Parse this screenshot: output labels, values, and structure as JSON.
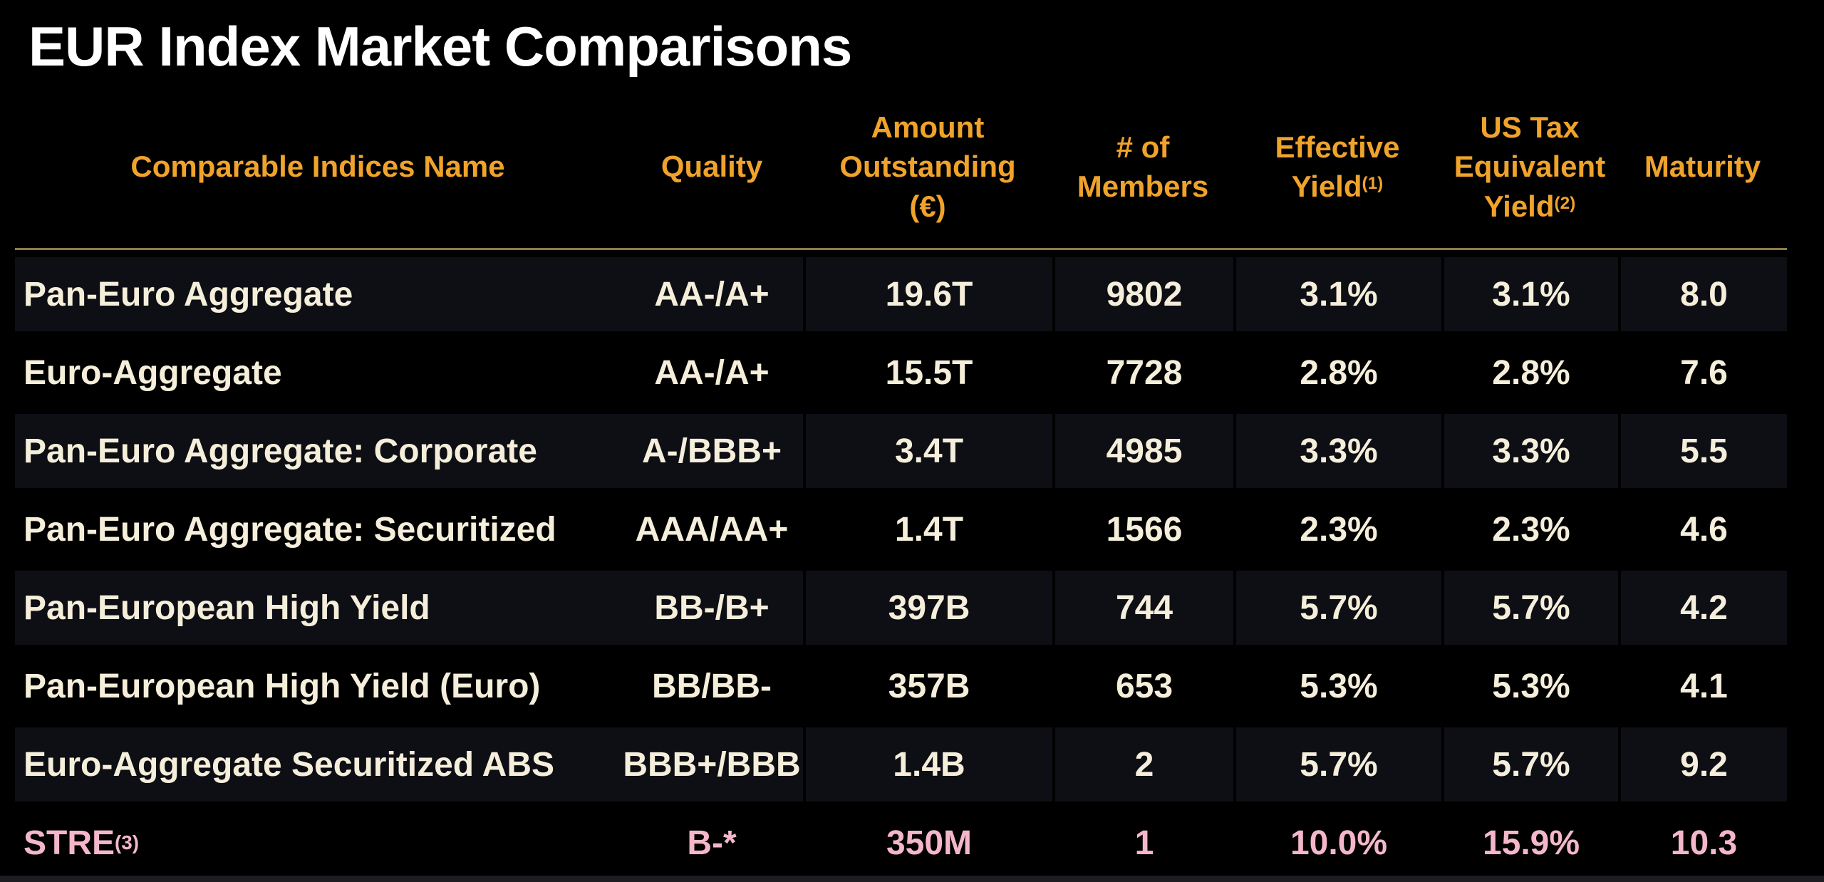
{
  "title": "EUR Index Market Comparisons",
  "colors": {
    "background": "#000000",
    "title_text": "#FFFFFF",
    "header_orange": "#F0A32B",
    "header_divider_gold": "#8D7B4A",
    "row_light_background": "#0E0E15",
    "row_dark_background": "#000000",
    "cell_text_cream": "#F5EEDA",
    "highlight_pink": "#F4B7CA"
  },
  "table": {
    "columns": [
      {
        "id": "name",
        "lines": [
          "Comparable Indices Name"
        ],
        "sup": ""
      },
      {
        "id": "quality",
        "lines": [
          "Quality"
        ],
        "sup": ""
      },
      {
        "id": "amount",
        "lines": [
          "Amount",
          "Outstanding",
          "(€)"
        ],
        "sup": ""
      },
      {
        "id": "members",
        "lines": [
          "# of",
          "Members"
        ],
        "sup": ""
      },
      {
        "id": "effective_yield",
        "lines": [
          "Effective",
          "Yield"
        ],
        "sup": "(1)"
      },
      {
        "id": "us_tax_equivalent_yield",
        "lines": [
          "US Tax",
          "Equivalent",
          "Yield"
        ],
        "sup": "(2)"
      },
      {
        "id": "maturity",
        "lines": [
          "Maturity"
        ],
        "sup": ""
      }
    ],
    "rows": [
      {
        "name": "Pan-Euro Aggregate",
        "name_sup": "",
        "quality": "AA-/A+",
        "amount": "19.6T",
        "members": "9802",
        "effective_yield": "3.1%",
        "us_tax_equivalent_yield": "3.1%",
        "maturity": "8.0",
        "highlight": false
      },
      {
        "name": "Euro-Aggregate",
        "name_sup": "",
        "quality": "AA-/A+",
        "amount": "15.5T",
        "members": "7728",
        "effective_yield": "2.8%",
        "us_tax_equivalent_yield": "2.8%",
        "maturity": "7.6",
        "highlight": false
      },
      {
        "name": "Pan-Euro Aggregate: Corporate",
        "name_sup": "",
        "quality": "A-/BBB+",
        "amount": "3.4T",
        "members": "4985",
        "effective_yield": "3.3%",
        "us_tax_equivalent_yield": "3.3%",
        "maturity": "5.5",
        "highlight": false
      },
      {
        "name": "Pan-Euro Aggregate: Securitized",
        "name_sup": "",
        "quality": "AAA/AA+",
        "amount": "1.4T",
        "members": "1566",
        "effective_yield": "2.3%",
        "us_tax_equivalent_yield": "2.3%",
        "maturity": "4.6",
        "highlight": false
      },
      {
        "name": "Pan-European High Yield",
        "name_sup": "",
        "quality": "BB-/B+",
        "amount": "397B",
        "members": "744",
        "effective_yield": "5.7%",
        "us_tax_equivalent_yield": "5.7%",
        "maturity": "4.2",
        "highlight": false
      },
      {
        "name": "Pan-European High Yield (Euro)",
        "name_sup": "",
        "quality": "BB/BB-",
        "amount": "357B",
        "members": "653",
        "effective_yield": "5.3%",
        "us_tax_equivalent_yield": "5.3%",
        "maturity": "4.1",
        "highlight": false
      },
      {
        "name": "Euro-Aggregate Securitized ABS",
        "name_sup": "",
        "quality": "BBB+/BBB",
        "amount": "1.4B",
        "members": "2",
        "effective_yield": "5.7%",
        "us_tax_equivalent_yield": "5.7%",
        "maturity": "9.2",
        "highlight": false
      },
      {
        "name": "STRE",
        "name_sup": "(3)",
        "quality": "B-*",
        "amount": "350M",
        "members": "1",
        "effective_yield": "10.0%",
        "us_tax_equivalent_yield": "15.9%",
        "maturity": "10.3",
        "highlight": true
      }
    ]
  }
}
